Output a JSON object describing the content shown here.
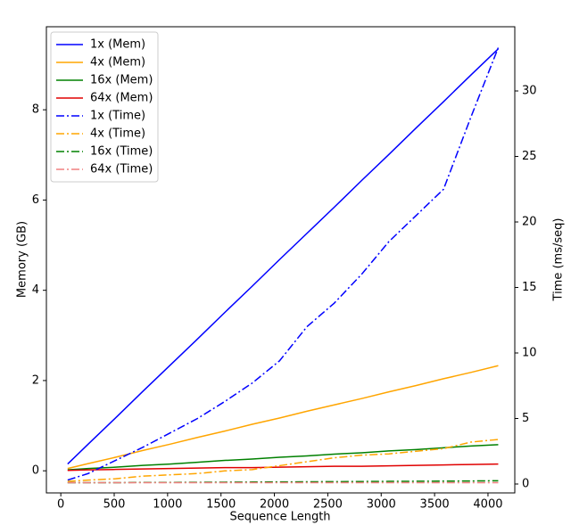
{
  "chart_data": {
    "type": "line",
    "xlabel": "Sequence Length",
    "ylabel": "Memory (GB)",
    "y2label": "Time (ms/seq)",
    "x": [
      64,
      256,
      512,
      768,
      1024,
      1280,
      1536,
      1792,
      2048,
      2304,
      2560,
      2816,
      3072,
      3328,
      3584,
      3840,
      4096
    ],
    "series": [
      {
        "name": "1x (Mem)",
        "color": "#0000ff",
        "linestyle": "solid",
        "values": [
          0.15,
          0.59,
          1.17,
          1.76,
          2.34,
          2.92,
          3.51,
          4.09,
          4.68,
          5.26,
          5.84,
          6.43,
          7.01,
          7.6,
          8.18,
          8.77,
          9.35
        ]
      },
      {
        "name": "4x (Mem)",
        "color": "#ffa500",
        "linestyle": "solid",
        "values": [
          0.05,
          0.16,
          0.3,
          0.45,
          0.59,
          0.74,
          0.88,
          1.03,
          1.17,
          1.32,
          1.46,
          1.6,
          1.75,
          1.89,
          2.04,
          2.18,
          2.33
        ]
      },
      {
        "name": "16x (Mem)",
        "color": "#008000",
        "linestyle": "solid",
        "values": [
          0.02,
          0.05,
          0.08,
          0.12,
          0.15,
          0.19,
          0.23,
          0.26,
          0.3,
          0.33,
          0.37,
          0.4,
          0.44,
          0.47,
          0.51,
          0.55,
          0.58
        ]
      },
      {
        "name": "64x (Mem)",
        "color": "#e00000",
        "linestyle": "solid",
        "values": [
          0.01,
          0.02,
          0.03,
          0.04,
          0.05,
          0.06,
          0.07,
          0.07,
          0.08,
          0.09,
          0.1,
          0.1,
          0.11,
          0.12,
          0.13,
          0.14,
          0.15
        ]
      },
      {
        "name": "1x (Time)",
        "color": "#0000ff",
        "linestyle": "dashdot",
        "axis": "y2",
        "values": [
          0.3,
          0.8,
          1.8,
          2.8,
          3.9,
          5.0,
          6.3,
          7.7,
          9.4,
          12.0,
          13.8,
          16.0,
          18.5,
          20.5,
          22.5,
          28.0,
          33.3
        ]
      },
      {
        "name": "4x (Time)",
        "color": "#ffa500",
        "linestyle": "dashdot",
        "axis": "y2",
        "values": [
          0.2,
          0.3,
          0.4,
          0.6,
          0.7,
          0.8,
          1.0,
          1.1,
          1.4,
          1.7,
          2.0,
          2.2,
          2.3,
          2.5,
          2.7,
          3.2,
          3.4
        ]
      },
      {
        "name": "16x (Time)",
        "color": "#008000",
        "linestyle": "dashdot",
        "axis": "y2",
        "values": [
          0.1,
          0.1,
          0.1,
          0.12,
          0.12,
          0.13,
          0.14,
          0.15,
          0.16,
          0.17,
          0.18,
          0.19,
          0.2,
          0.21,
          0.22,
          0.23,
          0.25
        ]
      },
      {
        "name": "64x (Time)",
        "color": "#f08080",
        "linestyle": "dashdot",
        "axis": "y2",
        "values": [
          0.1,
          0.1,
          0.1,
          0.1,
          0.1,
          0.1,
          0.1,
          0.1,
          0.1,
          0.1,
          0.1,
          0.1,
          0.1,
          0.1,
          0.1,
          0.1,
          0.1
        ]
      }
    ],
    "xlim": [
      -135,
      4251
    ],
    "xticks": [
      0,
      500,
      1000,
      1500,
      2000,
      2500,
      3000,
      3500,
      4000
    ],
    "ylim": [
      -0.49,
      9.84
    ],
    "yticks": [
      0,
      2,
      4,
      6,
      8
    ],
    "y2lim": [
      -0.68,
      34.9
    ],
    "y2ticks": [
      0,
      5,
      10,
      15,
      20,
      25,
      30
    ],
    "legend": "upper left",
    "grid": false
  }
}
